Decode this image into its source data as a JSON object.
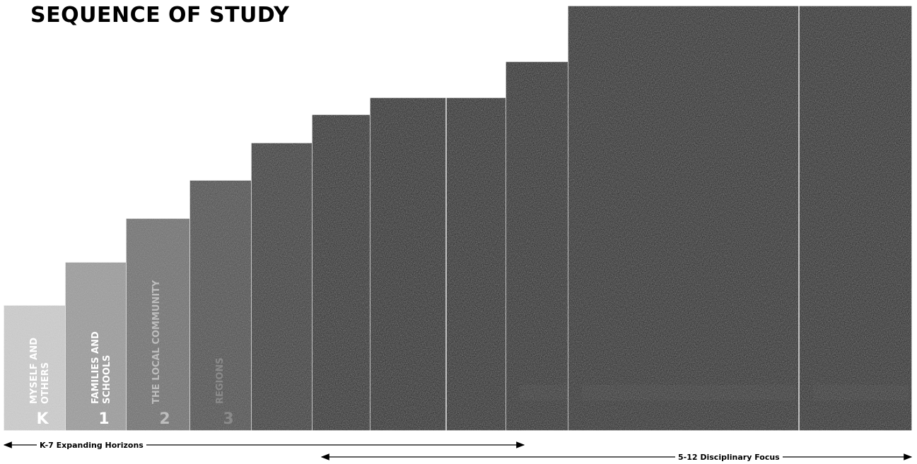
{
  "title": "SEQUENCE OF STUDY",
  "steps": [
    {
      "grade": "K",
      "topic_lines": [
        "MYSELF AND",
        "OTHERS"
      ]
    },
    {
      "grade": "1",
      "topic_lines": [
        "FAMILIES AND",
        "SCHOOLS"
      ]
    },
    {
      "grade": "2",
      "topic_lines": [
        "THE LOCAL COMMUNITY"
      ]
    },
    {
      "grade": "3",
      "topic_lines": [
        "REGIONS"
      ]
    },
    {
      "grade": "",
      "topic_lines": []
    },
    {
      "grade": "",
      "topic_lines": []
    },
    {
      "grade": "",
      "topic_lines": []
    },
    {
      "grade": "",
      "topic_lines": []
    },
    {
      "grade": "",
      "topic_lines": []
    },
    {
      "grade": "",
      "topic_lines": []
    },
    {
      "grade": "",
      "topic_lines": []
    }
  ],
  "spans": {
    "expanding": "K-7 Expanding Horizons",
    "disciplinary": "5-12 Disciplinary Focus"
  }
}
